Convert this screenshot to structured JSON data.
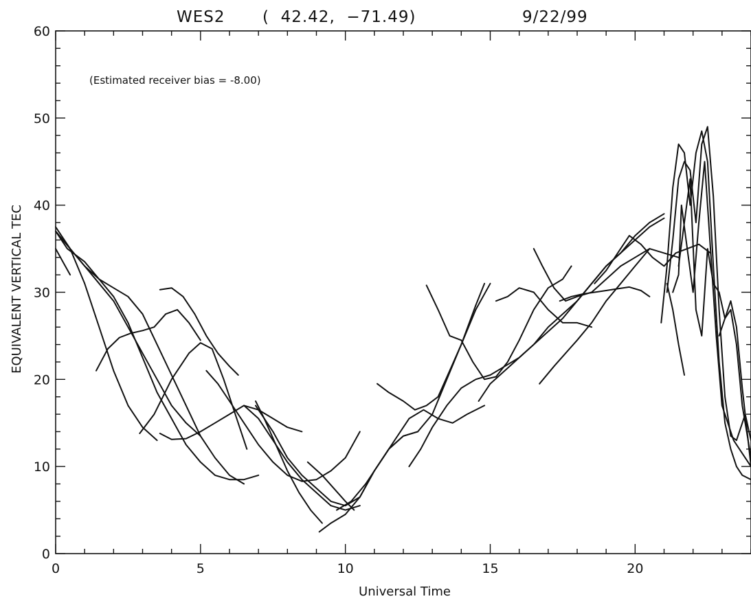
{
  "header": {
    "station": "WES2",
    "coords": "(  42.42,  −71.49)",
    "date": "9/22/99"
  },
  "annotation": "(Estimated receiver bias =  -8.00)",
  "chart_data": {
    "type": "line",
    "title": "WES2   (  42.42,  −71.49)        9/22/99",
    "xlabel": "Universal Time",
    "ylabel": "EQUIVALENT VERTICAL TEC",
    "xlim": [
      0,
      24
    ],
    "ylim": [
      0,
      60
    ],
    "xticks": [
      0,
      5,
      10,
      15,
      20
    ],
    "yticks": [
      0,
      10,
      20,
      30,
      40,
      50,
      60
    ],
    "grid": false,
    "legend": "none",
    "series": [
      {
        "x": [
          0,
          0.5,
          1.0,
          1.5,
          2.0,
          2.5,
          3.0,
          3.5
        ],
        "y": [
          37.5,
          35,
          31,
          26,
          21,
          17,
          14.5,
          13
        ]
      },
      {
        "x": [
          0,
          0.5,
          1.0,
          1.5,
          2.0,
          2.5,
          3.0,
          3.5,
          4.0,
          4.5,
          5.0
        ],
        "y": [
          37,
          35,
          33,
          31,
          29,
          26,
          23,
          20,
          17,
          15,
          13.5
        ]
      },
      {
        "x": [
          0,
          0.4,
          1.0,
          1.5,
          2.0,
          2.5,
          3.0,
          3.5,
          4.0,
          4.5,
          5.0,
          5.5,
          6.0,
          6.5,
          7.0
        ],
        "y": [
          37,
          35,
          33.5,
          31.5,
          29.5,
          26.5,
          22.5,
          18.5,
          15.5,
          12.5,
          10.5,
          9,
          8.5,
          8.5,
          9
        ]
      },
      {
        "x": [
          0,
          0.5,
          1.0,
          1.5,
          2.0,
          2.5,
          3.0,
          3.5,
          4.0,
          4.5,
          5.0,
          5.5,
          6.0,
          6.5
        ],
        "y": [
          37,
          35,
          33,
          31.5,
          30.5,
          29.5,
          27.5,
          24,
          20.5,
          17,
          13.5,
          11,
          9,
          8
        ]
      },
      {
        "x": [
          0,
          0.25,
          0.5
        ],
        "y": [
          35,
          33.5,
          32
        ]
      },
      {
        "x": [
          1.4,
          1.8,
          2.2,
          2.6,
          3.0,
          3.4,
          3.8,
          4.2,
          4.6,
          5.0
        ],
        "y": [
          21,
          23.5,
          24.8,
          25.3,
          25.6,
          26,
          27.5,
          28,
          26.5,
          24.5
        ]
      },
      {
        "x": [
          3.6,
          4.0,
          4.4,
          4.8,
          5.2,
          5.6,
          6.0,
          6.3
        ],
        "y": [
          30.3,
          30.5,
          29.5,
          27.5,
          25,
          23,
          21.5,
          20.5
        ]
      },
      {
        "x": [
          2.9,
          3.4,
          4.0,
          4.6,
          5.0,
          5.4,
          5.8,
          6.2,
          6.6
        ],
        "y": [
          13.8,
          16,
          20,
          23,
          24.2,
          23.5,
          20,
          16,
          12
        ]
      },
      {
        "x": [
          3.6,
          4.0,
          4.5,
          5.0,
          5.5,
          6.0,
          6.5,
          7.0,
          7.5,
          8.0,
          8.5
        ],
        "y": [
          13.8,
          13.1,
          13.2,
          14,
          15,
          16,
          17,
          16.5,
          15.5,
          14.5,
          14
        ]
      },
      {
        "x": [
          5.2,
          5.6,
          6.0,
          6.5,
          7.0,
          7.5,
          8.0,
          8.5,
          9.0,
          9.5,
          10.0,
          10.5
        ],
        "y": [
          21,
          19.5,
          17.5,
          15,
          12.5,
          10.5,
          9,
          8.3,
          8.5,
          9.5,
          11,
          14
        ]
      },
      {
        "x": [
          6.9,
          7.2,
          7.6,
          8.0,
          8.4,
          8.8,
          9.2
        ],
        "y": [
          17.5,
          15.5,
          12.5,
          9.5,
          7,
          5,
          3.5
        ]
      },
      {
        "x": [
          6.5,
          7.0,
          7.5,
          8.0,
          8.5,
          9.0,
          9.5,
          10.0,
          10.5
        ],
        "y": [
          17,
          15.5,
          13,
          10.5,
          8.5,
          7,
          5.5,
          5,
          5.5
        ]
      },
      {
        "x": [
          6.9,
          7.5,
          8.0,
          8.5,
          9.0,
          9.5,
          10.0,
          10.5,
          11.0,
          11.5,
          12.0,
          12.5
        ],
        "y": [
          17,
          14,
          11,
          9,
          7.5,
          6,
          5.5,
          6.5,
          9.5,
          12,
          13.5,
          14
        ]
      },
      {
        "x": [
          8.7,
          9.2,
          9.6,
          10.0,
          10.3
        ],
        "y": [
          10.5,
          9,
          7.5,
          6,
          5
        ]
      },
      {
        "x": [
          9.1,
          9.5,
          10.0,
          10.5,
          11.0,
          11.5,
          12.0,
          12.5,
          13.0,
          13.5,
          14.0,
          14.5,
          14.8
        ],
        "y": [
          2.5,
          3.5,
          4.5,
          6.5,
          9.5,
          12,
          13.5,
          14,
          16,
          20,
          24,
          28.5,
          31
        ]
      },
      {
        "x": [
          9.7,
          10.2,
          10.7,
          11.2,
          11.7,
          12.2,
          12.7,
          13.2,
          13.7,
          14.2,
          14.8
        ],
        "y": [
          5,
          6,
          8,
          10.5,
          13,
          15.5,
          16.5,
          15.5,
          15,
          16,
          17
        ]
      },
      {
        "x": [
          11.1,
          11.5,
          12.0,
          12.4,
          12.8,
          13.2,
          13.6,
          14.0,
          14.5,
          15.0
        ],
        "y": [
          19.5,
          18.5,
          17.5,
          16.5,
          17,
          18,
          21,
          24,
          28,
          31
        ]
      },
      {
        "x": [
          12.8,
          13.2,
          13.6,
          14.0,
          14.4,
          14.8,
          15.2,
          15.6,
          16.0,
          16.5,
          17.0,
          17.5,
          17.8
        ],
        "y": [
          30.8,
          28,
          25,
          24.5,
          22,
          20,
          20.3,
          22,
          24.5,
          28,
          30.5,
          31.5,
          33
        ]
      },
      {
        "x": [
          12.2,
          12.6,
          13.0,
          13.5,
          14.0,
          14.5,
          15.0,
          15.5,
          16.0,
          16.5,
          17.0,
          17.5,
          18.0,
          18.5,
          19.0,
          19.5,
          20.0,
          20.5,
          21.0
        ],
        "y": [
          10,
          12,
          14.5,
          17,
          19,
          20,
          20.5,
          21.5,
          22.5,
          24,
          25.5,
          27,
          29,
          31,
          33,
          34.5,
          36,
          37.5,
          38.5
        ]
      },
      {
        "x": [
          14.6,
          15.0,
          15.5,
          16.0,
          16.5,
          17.0,
          17.5,
          18.0,
          18.5,
          19.0,
          19.5,
          20.0,
          20.5,
          21.0
        ],
        "y": [
          17.5,
          19.5,
          21,
          22.5,
          24,
          26,
          27.5,
          29,
          31,
          33,
          34.5,
          36.5,
          38,
          39
        ]
      },
      {
        "x": [
          15.2,
          15.6,
          16.0,
          16.5,
          17.0,
          17.5,
          18.0,
          18.5
        ],
        "y": [
          29,
          29.5,
          30.5,
          30,
          28,
          26.5,
          26.5,
          26
        ]
      },
      {
        "x": [
          16.5,
          16.8,
          17.2,
          17.6,
          18.0,
          18.5,
          19.0,
          19.5,
          20.0,
          20.5,
          21.0,
          21.5
        ],
        "y": [
          35,
          33,
          30.5,
          29,
          29.5,
          30,
          31.5,
          33,
          34,
          35,
          34.5,
          34
        ]
      },
      {
        "x": [
          16.7,
          17.2,
          17.6,
          18.0,
          18.5,
          19.0,
          19.5,
          20.0,
          20.5
        ],
        "y": [
          19.5,
          21.5,
          23,
          24.5,
          26.5,
          29,
          31,
          33,
          35
        ]
      },
      {
        "x": [
          17.4,
          17.8,
          18.2,
          18.6,
          19.0,
          19.4,
          19.8,
          20.2,
          20.5
        ],
        "y": [
          29,
          29.5,
          29.8,
          30,
          30.2,
          30.4,
          30.6,
          30.2,
          29.5
        ]
      },
      {
        "x": [
          18.6,
          19.0,
          19.4,
          19.8,
          20.2,
          20.6,
          21.0,
          21.4,
          21.8,
          22.2,
          22.6
        ],
        "y": [
          31,
          32.5,
          34.5,
          36.5,
          35.5,
          34,
          33,
          34.5,
          35,
          35.5,
          34.5
        ]
      },
      {
        "x": [
          20.9,
          21.1,
          21.3,
          21.5,
          21.7,
          21.9,
          22.1,
          22.3,
          22.5,
          22.7,
          22.9,
          23.1,
          23.3,
          23.5,
          23.7,
          24.0
        ],
        "y": [
          26.5,
          33,
          42,
          47,
          46,
          40,
          46,
          48.5,
          45,
          33,
          22,
          15,
          12,
          10,
          9,
          8.5
        ]
      },
      {
        "x": [
          21.1,
          21.3,
          21.5,
          21.7,
          21.9,
          22.1,
          22.3,
          22.5,
          22.7,
          22.9,
          23.1,
          23.3,
          23.5,
          23.8,
          24.0
        ],
        "y": [
          30,
          36,
          43,
          45,
          44,
          38,
          47,
          49,
          41,
          28,
          18,
          13.5,
          13,
          16,
          13
        ]
      },
      {
        "x": [
          21.3,
          21.5,
          21.6,
          21.8,
          22.0,
          22.2,
          22.4,
          22.6,
          22.8,
          23.0,
          23.2,
          23.4,
          23.7,
          24.0
        ],
        "y": [
          30,
          32,
          40,
          35,
          30,
          38,
          45,
          35,
          25,
          17,
          15,
          13,
          11.5,
          10
        ]
      },
      {
        "x": [
          21.5,
          21.7,
          21.9,
          22.1,
          22.3,
          22.5,
          22.7,
          22.9,
          23.1,
          23.3,
          23.5,
          23.7,
          23.9,
          24.0
        ],
        "y": [
          33,
          38,
          43,
          28,
          25,
          35,
          31,
          30,
          27,
          29,
          26,
          19,
          13,
          10
        ]
      },
      {
        "x": [
          21.1,
          21.3,
          21.5,
          21.7
        ],
        "y": [
          31,
          28,
          24,
          20.5
        ]
      },
      {
        "x": [
          22.9,
          23.1,
          23.3,
          23.5,
          23.7,
          23.85,
          24.0
        ],
        "y": [
          25,
          27,
          28,
          24,
          17,
          14,
          11
        ]
      }
    ]
  }
}
